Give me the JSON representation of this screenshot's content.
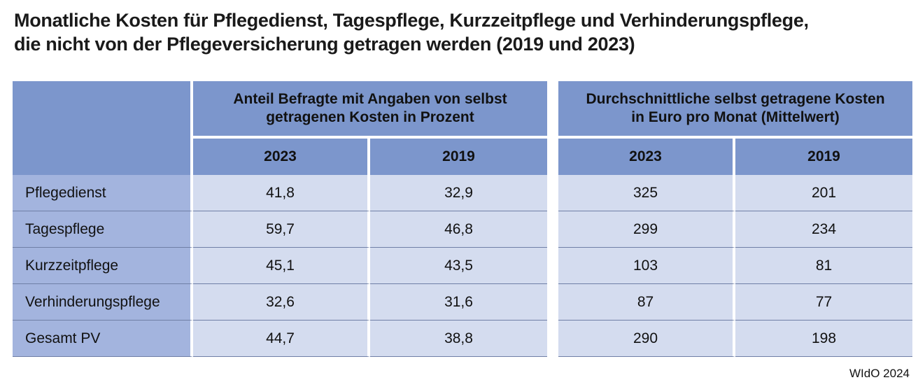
{
  "chart_data": {
    "type": "table",
    "title": "Monatliche Kosten für Pflegedienst, Tagespflege, Kurzzeitpflege und Verhinderungspflege,",
    "subtitle": "die nicht von der Pflegeversicherung getragen werden (2019 und 2023)",
    "groups": [
      {
        "label_line1": "Anteil Befragte mit Angaben von selbst",
        "label_line2": "getragenen Kosten in Prozent",
        "years": [
          "2023",
          "2019"
        ]
      },
      {
        "label_line1": "Durchschnittliche selbst getragene Kosten",
        "label_line2": "in Euro pro Monat (Mittelwert)",
        "years": [
          "2023",
          "2019"
        ]
      }
    ],
    "rows": [
      {
        "label": "Pflegedienst",
        "share_2023": "41,8",
        "share_2019": "32,9",
        "cost_2023": "325",
        "cost_2019": "201"
      },
      {
        "label": "Tagespflege",
        "share_2023": "59,7",
        "share_2019": "46,8",
        "cost_2023": "299",
        "cost_2019": "234"
      },
      {
        "label": "Kurzzeitpflege",
        "share_2023": "45,1",
        "share_2019": "43,5",
        "cost_2023": "103",
        "cost_2019": "81"
      },
      {
        "label": "Verhinderungspflege",
        "share_2023": "32,6",
        "share_2019": "31,6",
        "cost_2023": "87",
        "cost_2019": "77"
      },
      {
        "label": "Gesamt PV",
        "share_2023": "44,7",
        "share_2019": "38,8",
        "cost_2023": "290",
        "cost_2019": "198"
      }
    ],
    "source": "WIdO 2024"
  },
  "colors": {
    "header": "#7c96cc",
    "row_label": "#a3b4de",
    "cell": "#d4dcef",
    "rule": "#6f7fa6"
  }
}
